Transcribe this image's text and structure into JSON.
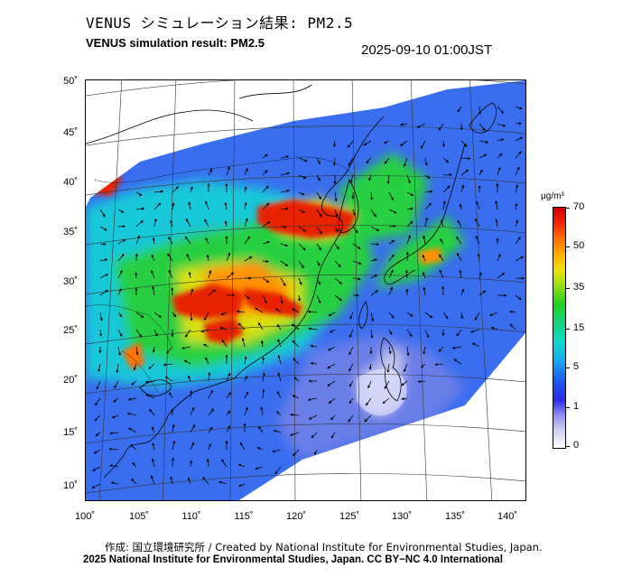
{
  "title_jp": "VENUS シミュレーション結果: PM2.5",
  "title_en": "VENUS simulation result: PM2.5",
  "timestamp": "2025-09-10 01:00JST",
  "map": {
    "lat_labels": [
      "50˚",
      "45˚",
      "40˚",
      "35˚",
      "30˚",
      "25˚",
      "20˚",
      "15˚",
      "10˚"
    ],
    "lon_labels": [
      "100˚",
      "105˚",
      "110˚",
      "115˚",
      "120˚",
      "125˚",
      "130˚",
      "135˚",
      "140˚"
    ]
  },
  "colorbar": {
    "unit": "μg/m³",
    "labels": [
      "70",
      "50",
      "35",
      "15",
      "5",
      "1",
      "0"
    ],
    "colors": [
      "#d00000",
      "#ff7000",
      "#f0e010",
      "#20d020",
      "#12d6d0",
      "#2a2ae6",
      "#ffffff"
    ]
  },
  "credit": "作成: 国立環境研究所 / Created by National Institute for Environmental Studies, Japan.",
  "license": "2025 National Institute for Environmental Studies, Japan. CC BY−NC 4.0 International"
}
